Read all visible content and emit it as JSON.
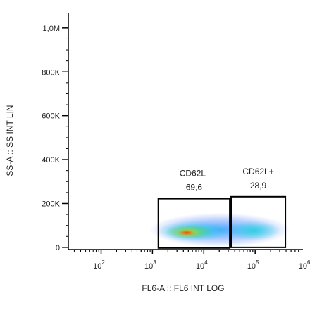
{
  "chart_data": {
    "type": "scatter",
    "x_label": "FL6-A :: FL6 INT LOG",
    "y_label": "SS-A :: SS INT LIN",
    "log_x": true,
    "xlim": [
      23,
      800000
    ],
    "xticks": [
      {
        "value": 100,
        "label": "10",
        "exponent": "2"
      },
      {
        "value": 1000,
        "label": "10",
        "exponent": "3"
      },
      {
        "value": 10000,
        "label": "10",
        "exponent": "4"
      },
      {
        "value": 100000,
        "label": "10",
        "exponent": "5"
      },
      {
        "value": 1000000,
        "label": "10",
        "exponent": "6"
      }
    ],
    "ylim": [
      -10000,
      1070000
    ],
    "yticks": [
      0,
      {
        "value": 200000,
        "label": "200K"
      },
      {
        "value": 400000,
        "label": "400K"
      },
      {
        "value": 600000,
        "label": "600K"
      },
      {
        "value": 800000,
        "label": "800K"
      },
      {
        "value": 1000000,
        "label": "1,0M"
      }
    ],
    "gates": [
      {
        "name": "CD62L-",
        "value": 69.6,
        "value_label": "69,6",
        "x": [
          1300,
          32000
        ],
        "y": [
          -3000,
          222000
        ]
      },
      {
        "name": "CD62L+",
        "value": 28.9,
        "value_label": "28,9",
        "x": [
          34000,
          388000
        ],
        "y": [
          0,
          231000
        ]
      }
    ]
  }
}
